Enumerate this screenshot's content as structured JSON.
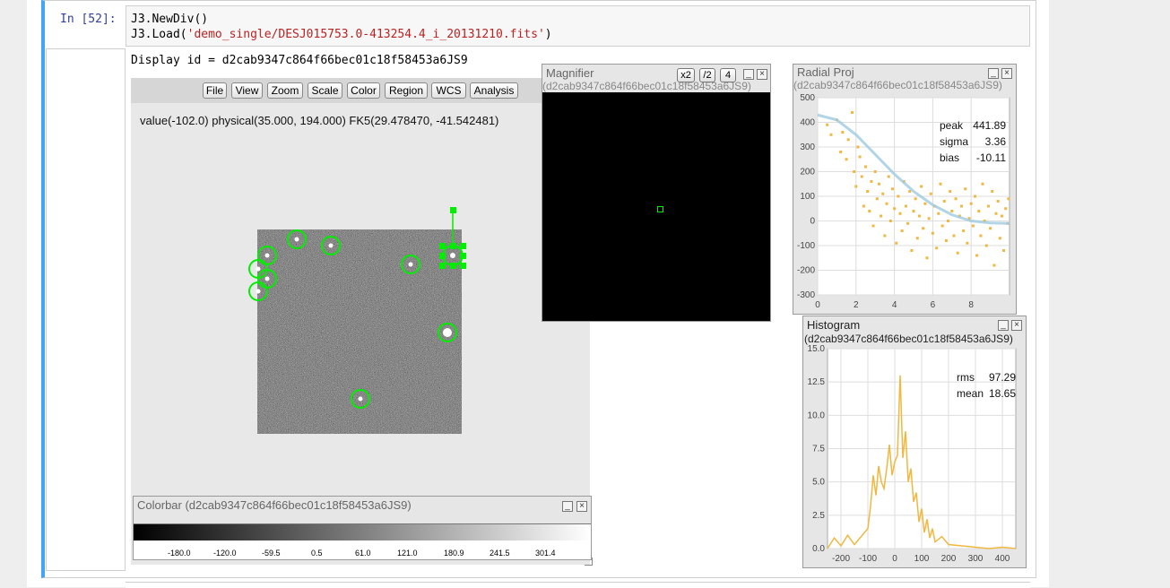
{
  "cell": {
    "prompt": "In [52]:",
    "code_line1": "J3.NewDiv()",
    "code_line2_prefix": "J3.Load(",
    "code_line2_string": "'demo_single/DESJ015753.0-413254.4_i_20131210.fits'",
    "code_line2_suffix": ")",
    "display_id": "Display id = d2cab9347c864f66bec01c18f58453a6JS9"
  },
  "menubar": {
    "items": [
      "File",
      "View",
      "Zoom",
      "Scale",
      "Color",
      "Region",
      "WCS",
      "Analysis"
    ]
  },
  "info": {
    "value_text": "value(-102.0) physical(35.000, 194.000) FK5(29.478470, -41.542481)"
  },
  "magnifier": {
    "title": "Magnifier",
    "subtitle": "(d2cab9347c864f66bec01c18f58453a6JS9)",
    "buttons": [
      "x2",
      "/2",
      "4"
    ]
  },
  "radial": {
    "title": "Radial Proj",
    "subtitle": "(d2cab9347c864f66bec01c18f58453a6JS9)",
    "stats": [
      {
        "label": "peak",
        "value": "441.89"
      },
      {
        "label": "sigma",
        "value": "3.36"
      },
      {
        "label": "bias",
        "value": "-10.11"
      }
    ]
  },
  "histogram": {
    "title": "Histogram",
    "subtitle": "(d2cab9347c864f66bec01c18f58453a6JS9)",
    "stats": [
      {
        "label": "rms",
        "value": "97.29"
      },
      {
        "label": "mean",
        "value": "18.65"
      }
    ]
  },
  "colorbar": {
    "title": "Colorbar (d2cab9347c864f66bec01c18f58453a6JS9)",
    "ticks": [
      "-180.0",
      "-120.0",
      "-59.5",
      "0.5",
      "61.0",
      "121.0",
      "180.9",
      "241.5",
      "301.4"
    ]
  },
  "window_buttons": {
    "minimize": "_",
    "close": "×"
  },
  "colors": {
    "accent": "#42a5f5",
    "region": "#00ee00",
    "plot": "#f0b840",
    "fit": "#9ecae1"
  },
  "chart_data": [
    {
      "type": "scatter",
      "title": "Radial Proj",
      "xlim": [
        0,
        10
      ],
      "ylim": [
        -300,
        500
      ],
      "xticks": [
        "0",
        "2",
        "4",
        "6",
        "8"
      ],
      "yticks": [
        "500",
        "400",
        "300",
        "200",
        "100",
        "0",
        "-100",
        "-200",
        "-300"
      ],
      "series": [
        {
          "name": "fit",
          "x": [
            0,
            1,
            2,
            3,
            4,
            5,
            6,
            7,
            8,
            9,
            10
          ],
          "y": [
            430,
            410,
            350,
            270,
            190,
            120,
            65,
            25,
            0,
            -8,
            -10
          ]
        }
      ],
      "scatter_points": [
        [
          0.5,
          390
        ],
        [
          0.7,
          350
        ],
        [
          1.0,
          410
        ],
        [
          1.2,
          280
        ],
        [
          1.3,
          360
        ],
        [
          1.5,
          250
        ],
        [
          1.6,
          330
        ],
        [
          1.8,
          440
        ],
        [
          1.9,
          200
        ],
        [
          2.0,
          140
        ],
        [
          2.1,
          300
        ],
        [
          2.2,
          260
        ],
        [
          2.3,
          180
        ],
        [
          2.4,
          60
        ],
        [
          2.5,
          220
        ],
        [
          2.6,
          120
        ],
        [
          2.7,
          40
        ],
        [
          2.8,
          160
        ],
        [
          2.9,
          -20
        ],
        [
          3.0,
          200
        ],
        [
          3.1,
          90
        ],
        [
          3.2,
          150
        ],
        [
          3.3,
          20
        ],
        [
          3.4,
          110
        ],
        [
          3.5,
          -60
        ],
        [
          3.6,
          70
        ],
        [
          3.7,
          180
        ],
        [
          3.8,
          0
        ],
        [
          3.9,
          130
        ],
        [
          4.0,
          50
        ],
        [
          4.1,
          -90
        ],
        [
          4.2,
          100
        ],
        [
          4.3,
          30
        ],
        [
          4.4,
          -40
        ],
        [
          4.5,
          160
        ],
        [
          4.6,
          60
        ],
        [
          4.7,
          -10
        ],
        [
          4.8,
          120
        ],
        [
          4.9,
          -120
        ],
        [
          5.0,
          40
        ],
        [
          5.1,
          90
        ],
        [
          5.2,
          -70
        ],
        [
          5.3,
          20
        ],
        [
          5.4,
          140
        ],
        [
          5.5,
          -30
        ],
        [
          5.6,
          70
        ],
        [
          5.7,
          -150
        ],
        [
          5.8,
          10
        ],
        [
          5.9,
          110
        ],
        [
          6.0,
          -50
        ],
        [
          6.1,
          60
        ],
        [
          6.2,
          -110
        ],
        [
          6.3,
          30
        ],
        [
          6.4,
          150
        ],
        [
          6.5,
          -20
        ],
        [
          6.6,
          80
        ],
        [
          6.7,
          -80
        ],
        [
          6.8,
          0
        ],
        [
          6.9,
          120
        ],
        [
          7.0,
          40
        ],
        [
          7.1,
          -60
        ],
        [
          7.2,
          90
        ],
        [
          7.3,
          -130
        ],
        [
          7.4,
          20
        ],
        [
          7.5,
          60
        ],
        [
          7.6,
          -40
        ],
        [
          7.7,
          130
        ],
        [
          7.8,
          -90
        ],
        [
          7.9,
          10
        ],
        [
          8.0,
          70
        ],
        [
          8.1,
          -20
        ],
        [
          8.2,
          100
        ],
        [
          8.3,
          -140
        ],
        [
          8.4,
          40
        ],
        [
          8.5,
          -60
        ],
        [
          8.6,
          150
        ],
        [
          8.7,
          0
        ],
        [
          8.8,
          -100
        ],
        [
          8.9,
          60
        ],
        [
          9.0,
          -30
        ],
        [
          9.1,
          120
        ],
        [
          9.2,
          -180
        ],
        [
          9.3,
          30
        ],
        [
          9.4,
          80
        ],
        [
          9.5,
          -70
        ],
        [
          9.6,
          20
        ],
        [
          9.7,
          -120
        ],
        [
          9.8,
          50
        ],
        [
          9.9,
          -10
        ],
        [
          9.95,
          90
        ]
      ]
    },
    {
      "type": "line",
      "title": "Histogram",
      "xlim": [
        -250,
        450
      ],
      "ylim": [
        0,
        15
      ],
      "xticks": [
        "-200",
        "-100",
        "0",
        "100",
        "200",
        "300",
        "400"
      ],
      "yticks": [
        "15.0",
        "12.5",
        "10.0",
        "7.5",
        "5.0",
        "2.5",
        "0.0"
      ],
      "x": [
        -250,
        -225,
        -200,
        -175,
        -150,
        -125,
        -100,
        -90,
        -80,
        -70,
        -60,
        -50,
        -40,
        -30,
        -20,
        -10,
        0,
        10,
        20,
        30,
        40,
        50,
        60,
        70,
        80,
        90,
        100,
        110,
        120,
        130,
        140,
        150,
        175,
        200,
        250,
        300,
        350,
        400,
        450
      ],
      "series": [
        {
          "values": [
            0,
            0.8,
            0.2,
            1.0,
            0.3,
            0.9,
            1.5,
            3.2,
            5.5,
            4.0,
            6.2,
            5.0,
            4.5,
            6.0,
            7.8,
            5.5,
            6.5,
            7.0,
            13.0,
            6.8,
            8.8,
            5.0,
            6.0,
            3.5,
            4.2,
            2.0,
            3.0,
            1.2,
            2.2,
            0.8,
            1.5,
            0.5,
            0.9,
            0.3,
            0.2,
            0.1,
            0,
            0.1,
            0
          ]
        }
      ]
    }
  ]
}
